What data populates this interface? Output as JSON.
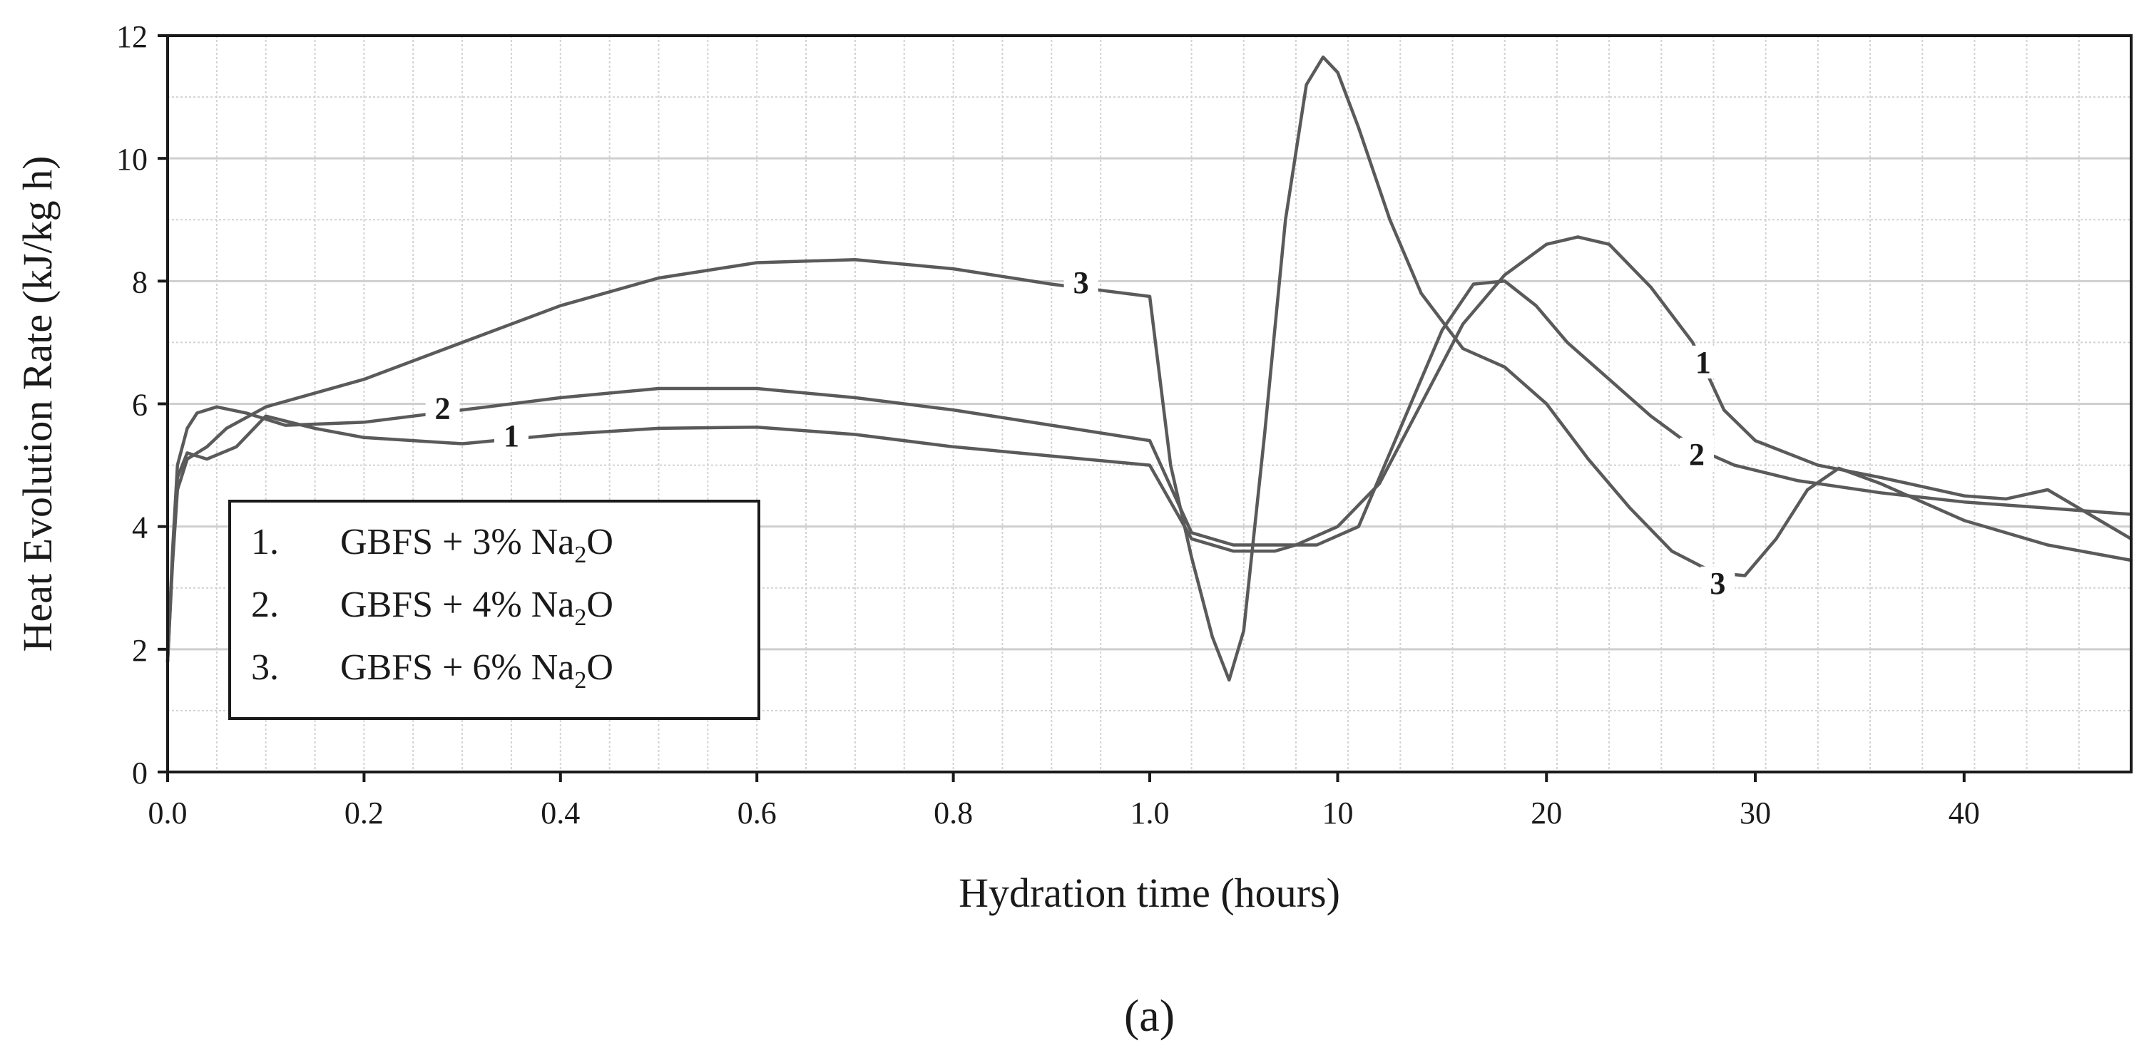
{
  "chart_data": {
    "type": "line",
    "caption": "(a)",
    "xlabel": "Hydration time (hours)",
    "ylabel": "Heat Evolution Rate (kJ/kg h)",
    "ylim": [
      0,
      12
    ],
    "grid": true,
    "legend_position": "bottom-left",
    "x_axis_segments": [
      {
        "range": [
          0,
          1
        ],
        "ticks": [
          0.0,
          0.2,
          0.4,
          0.6,
          0.8,
          1.0
        ],
        "tick_labels": [
          "0.0",
          "0.2",
          "0.4",
          "0.6",
          "0.8",
          "1.0"
        ]
      },
      {
        "range": [
          1,
          48
        ],
        "ticks": [
          10,
          20,
          30,
          40
        ],
        "tick_labels": [
          "10",
          "20",
          "30",
          "40"
        ]
      }
    ],
    "y_ticks": [
      0,
      2,
      4,
      6,
      8,
      10,
      12
    ],
    "y_tick_labels": [
      "0",
      "2",
      "4",
      "6",
      "8",
      "10",
      "12"
    ],
    "legend": [
      {
        "num": "1.",
        "prefix": "GBFS + 3% Na",
        "sub": "2",
        "suffix": "O"
      },
      {
        "num": "2.",
        "prefix": "GBFS + 4% Na",
        "sub": "2",
        "suffix": "O"
      },
      {
        "num": "3.",
        "prefix": "GBFS + 6% Na",
        "sub": "2",
        "suffix": "O"
      }
    ],
    "series": [
      {
        "name": "1",
        "label_at": [
          0.35,
          5.4
        ],
        "label2_at": [
          27.5,
          6.6
        ],
        "points": [
          [
            0,
            1.8
          ],
          [
            0.005,
            3.5
          ],
          [
            0.01,
            4.8
          ],
          [
            0.02,
            5.2
          ],
          [
            0.04,
            5.1
          ],
          [
            0.07,
            5.3
          ],
          [
            0.1,
            5.8
          ],
          [
            0.15,
            5.6
          ],
          [
            0.2,
            5.45
          ],
          [
            0.3,
            5.35
          ],
          [
            0.4,
            5.5
          ],
          [
            0.5,
            5.6
          ],
          [
            0.6,
            5.62
          ],
          [
            0.7,
            5.5
          ],
          [
            0.8,
            5.3
          ],
          [
            0.9,
            5.15
          ],
          [
            1.0,
            5.0
          ],
          [
            3,
            3.8
          ],
          [
            5,
            3.6
          ],
          [
            7,
            3.6
          ],
          [
            8,
            3.7
          ],
          [
            10,
            4.0
          ],
          [
            12,
            4.7
          ],
          [
            14,
            6.0
          ],
          [
            16,
            7.3
          ],
          [
            18,
            8.1
          ],
          [
            20,
            8.6
          ],
          [
            21.5,
            8.72
          ],
          [
            23,
            8.6
          ],
          [
            25,
            7.9
          ],
          [
            27,
            7.0
          ],
          [
            28.5,
            5.9
          ],
          [
            30,
            5.4
          ],
          [
            33,
            5.0
          ],
          [
            36,
            4.8
          ],
          [
            40,
            4.5
          ],
          [
            42,
            4.45
          ],
          [
            44,
            4.6
          ],
          [
            46,
            4.2
          ],
          [
            48,
            3.8
          ]
        ]
      },
      {
        "name": "2",
        "label_at": [
          0.28,
          5.85
        ],
        "label2_at": [
          27.2,
          5.1
        ],
        "points": [
          [
            0,
            1.8
          ],
          [
            0.005,
            3.6
          ],
          [
            0.01,
            5.0
          ],
          [
            0.02,
            5.6
          ],
          [
            0.03,
            5.85
          ],
          [
            0.05,
            5.95
          ],
          [
            0.08,
            5.85
          ],
          [
            0.12,
            5.65
          ],
          [
            0.2,
            5.7
          ],
          [
            0.3,
            5.9
          ],
          [
            0.4,
            6.1
          ],
          [
            0.5,
            6.25
          ],
          [
            0.6,
            6.25
          ],
          [
            0.7,
            6.1
          ],
          [
            0.8,
            5.9
          ],
          [
            0.9,
            5.65
          ],
          [
            1.0,
            5.4
          ],
          [
            3,
            3.9
          ],
          [
            5,
            3.7
          ],
          [
            7,
            3.7
          ],
          [
            9,
            3.7
          ],
          [
            11,
            4.0
          ],
          [
            13,
            5.6
          ],
          [
            15,
            7.2
          ],
          [
            16.5,
            7.95
          ],
          [
            18,
            8.0
          ],
          [
            19.5,
            7.6
          ],
          [
            21,
            7.0
          ],
          [
            23,
            6.4
          ],
          [
            25,
            5.8
          ],
          [
            27,
            5.3
          ],
          [
            29,
            5.0
          ],
          [
            32,
            4.75
          ],
          [
            36,
            4.55
          ],
          [
            40,
            4.4
          ],
          [
            44,
            4.3
          ],
          [
            48,
            4.2
          ]
        ]
      },
      {
        "name": "3",
        "label_at": [
          0.93,
          7.9
        ],
        "label2_at": [
          28.2,
          3.0
        ],
        "points": [
          [
            0,
            1.8
          ],
          [
            0.005,
            3.4
          ],
          [
            0.01,
            4.6
          ],
          [
            0.02,
            5.1
          ],
          [
            0.04,
            5.3
          ],
          [
            0.06,
            5.6
          ],
          [
            0.1,
            5.95
          ],
          [
            0.2,
            6.4
          ],
          [
            0.3,
            7.0
          ],
          [
            0.4,
            7.6
          ],
          [
            0.5,
            8.05
          ],
          [
            0.6,
            8.3
          ],
          [
            0.7,
            8.35
          ],
          [
            0.8,
            8.2
          ],
          [
            0.9,
            7.95
          ],
          [
            0.95,
            7.85
          ],
          [
            1.0,
            7.75
          ],
          [
            2,
            5.0
          ],
          [
            3,
            3.5
          ],
          [
            4,
            2.2
          ],
          [
            4.8,
            1.5
          ],
          [
            5.5,
            2.3
          ],
          [
            6.5,
            5.5
          ],
          [
            7.5,
            9.0
          ],
          [
            8.5,
            11.2
          ],
          [
            9.3,
            11.65
          ],
          [
            10,
            11.4
          ],
          [
            11,
            10.5
          ],
          [
            12.5,
            9.0
          ],
          [
            14,
            7.8
          ],
          [
            16,
            6.9
          ],
          [
            18,
            6.6
          ],
          [
            20,
            6.0
          ],
          [
            22,
            5.1
          ],
          [
            24,
            4.3
          ],
          [
            26,
            3.6
          ],
          [
            28,
            3.25
          ],
          [
            29.5,
            3.2
          ],
          [
            31,
            3.8
          ],
          [
            32.5,
            4.6
          ],
          [
            34,
            4.95
          ],
          [
            36,
            4.7
          ],
          [
            40,
            4.1
          ],
          [
            44,
            3.7
          ],
          [
            48,
            3.45
          ]
        ]
      }
    ]
  }
}
